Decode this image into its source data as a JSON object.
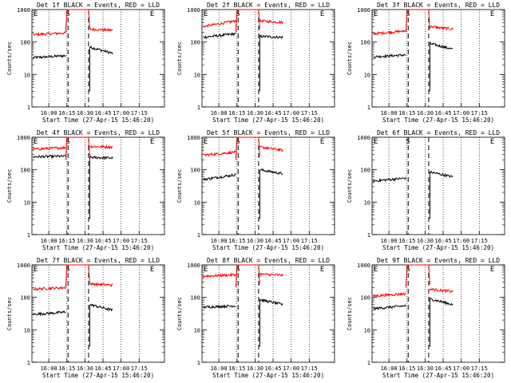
{
  "figure": {
    "shared": {
      "type": "line",
      "yscale": "log",
      "ylim": [
        1,
        1000
      ],
      "ylabel": "Counts/sec",
      "xlabel": "Start Time (27-Apr-15 15:46:20)",
      "xticks": [
        "16:00",
        "16:15",
        "16:30",
        "16:45",
        "17:00",
        "17:15"
      ],
      "yticks": [
        "1",
        "10",
        "100",
        "1000"
      ],
      "series_colors": {
        "events": "#000000",
        "lld": "#ff0000"
      },
      "marker_labels": [
        "E",
        "S",
        "E"
      ],
      "grid": "vertical dotted at x ticks"
    }
  },
  "chart_data": [
    {
      "type": "line",
      "title": "Det 1f BLACK = Events, RED = LLD",
      "xlabel": "Start Time (27-Apr-15 15:46:20)",
      "ylabel": "Counts/sec",
      "yscale": "log",
      "ylim": [
        1,
        1000
      ],
      "x_markers_min": [
        0,
        30,
        47,
        100
      ],
      "marker_labels": [
        "E",
        "S",
        "E"
      ],
      "series": [
        {
          "color": "#000000",
          "segments": [
            {
              "x": [
                1,
                28
              ],
              "y": [
                33,
                38
              ]
            },
            {
              "x": [
                48,
                67
              ],
              "y": [
                70,
                45
              ]
            }
          ]
        },
        {
          "color": "#ff0000",
          "segments": [
            {
              "x": [
                1,
                28
              ],
              "y": [
                170,
                190
              ]
            },
            {
              "x": [
                28,
                48
              ],
              "y": [
                1000,
                1000
              ]
            },
            {
              "x": [
                48,
                67
              ],
              "y": [
                250,
                230
              ]
            }
          ]
        }
      ]
    },
    {
      "type": "line",
      "title": "Det 2f BLACK = Events, RED = LLD",
      "xlabel": "Start Time (27-Apr-15 15:46:20)",
      "ylabel": "Counts/sec",
      "yscale": "log",
      "ylim": [
        1,
        1000
      ],
      "x_markers_min": [
        0,
        30,
        47,
        100
      ],
      "marker_labels": [
        "E",
        "S",
        "E"
      ],
      "series": [
        {
          "color": "#000000",
          "segments": [
            {
              "x": [
                1,
                28
              ],
              "y": [
                140,
                180
              ]
            },
            {
              "x": [
                48,
                67
              ],
              "y": [
                150,
                140
              ]
            }
          ]
        },
        {
          "color": "#ff0000",
          "segments": [
            {
              "x": [
                1,
                28
              ],
              "y": [
                300,
                450
              ]
            },
            {
              "x": [
                28,
                48
              ],
              "y": [
                1000,
                1000
              ]
            },
            {
              "x": [
                48,
                67
              ],
              "y": [
                450,
                400
              ]
            }
          ]
        }
      ]
    },
    {
      "type": "line",
      "title": "Det 3f BLACK = Events, RED = LLD",
      "xlabel": "Start Time (27-Apr-15 15:46:20)",
      "ylabel": "Counts/sec",
      "yscale": "log",
      "ylim": [
        1,
        1000
      ],
      "x_markers_min": [
        0,
        30,
        47,
        100
      ],
      "marker_labels": [
        "E",
        "S",
        "E"
      ],
      "series": [
        {
          "color": "#000000",
          "segments": [
            {
              "x": [
                1,
                28
              ],
              "y": [
                35,
                40
              ]
            },
            {
              "x": [
                48,
                67
              ],
              "y": [
                90,
                60
              ]
            }
          ]
        },
        {
          "color": "#ff0000",
          "segments": [
            {
              "x": [
                1,
                28
              ],
              "y": [
                180,
                220
              ]
            },
            {
              "x": [
                28,
                48
              ],
              "y": [
                1000,
                1000
              ]
            },
            {
              "x": [
                48,
                67
              ],
              "y": [
                300,
                250
              ]
            }
          ]
        }
      ]
    },
    {
      "type": "line",
      "title": "Det 4f BLACK = Events, RED = LLD",
      "xlabel": "Start Time (27-Apr-15 15:46:20)",
      "ylabel": "Counts/sec",
      "yscale": "log",
      "ylim": [
        1,
        1000
      ],
      "x_markers_min": [
        0,
        30,
        47,
        100
      ],
      "marker_labels": [
        "E",
        "S",
        "E"
      ],
      "series": [
        {
          "color": "#000000",
          "segments": [
            {
              "x": [
                1,
                28
              ],
              "y": [
                250,
                260
              ]
            },
            {
              "x": [
                48,
                67
              ],
              "y": [
                240,
                230
              ]
            }
          ]
        },
        {
          "color": "#ff0000",
          "segments": [
            {
              "x": [
                1,
                28
              ],
              "y": [
                430,
                480
              ]
            },
            {
              "x": [
                28,
                48
              ],
              "y": [
                1000,
                1000
              ]
            },
            {
              "x": [
                48,
                67
              ],
              "y": [
                520,
                500
              ]
            }
          ]
        }
      ]
    },
    {
      "type": "line",
      "title": "Det 5f BLACK = Events, RED = LLD",
      "xlabel": "Start Time (27-Apr-15 15:46:20)",
      "ylabel": "Counts/sec",
      "yscale": "log",
      "ylim": [
        1,
        1000
      ],
      "x_markers_min": [
        0,
        30,
        47,
        100
      ],
      "marker_labels": [
        "E",
        "S",
        "E"
      ],
      "series": [
        {
          "color": "#000000",
          "segments": [
            {
              "x": [
                1,
                28
              ],
              "y": [
                50,
                70
              ]
            },
            {
              "x": [
                48,
                67
              ],
              "y": [
                100,
                75
              ]
            }
          ]
        },
        {
          "color": "#ff0000",
          "segments": [
            {
              "x": [
                1,
                28
              ],
              "y": [
                280,
                350
              ]
            },
            {
              "x": [
                28,
                48
              ],
              "y": [
                1000,
                1000
              ]
            },
            {
              "x": [
                48,
                67
              ],
              "y": [
                500,
                400
              ]
            }
          ]
        }
      ]
    },
    {
      "type": "line",
      "title": "Det 6f BLACK = Events, RED = LLD",
      "xlabel": "Start Time (27-Apr-15 15:46:20)",
      "ylabel": "Counts/sec",
      "yscale": "log",
      "ylim": [
        1,
        1000
      ],
      "x_markers_min": [
        0,
        30,
        47,
        100
      ],
      "marker_labels": [
        "E",
        "S",
        "E"
      ],
      "series": [
        {
          "color": "#000000",
          "segments": [
            {
              "x": [
                1,
                28
              ],
              "y": [
                45,
                55
              ]
            },
            {
              "x": [
                48,
                67
              ],
              "y": [
                85,
                60
              ]
            }
          ]
        }
      ]
    },
    {
      "type": "line",
      "title": "Det 7f BLACK = Events, RED = LLD",
      "xlabel": "Start Time (27-Apr-15 15:46:20)",
      "ylabel": "Counts/sec",
      "yscale": "log",
      "ylim": [
        1,
        1000
      ],
      "x_markers_min": [
        0,
        30,
        47,
        100
      ],
      "marker_labels": [
        "E",
        "S",
        "E"
      ],
      "series": [
        {
          "color": "#000000",
          "segments": [
            {
              "x": [
                1,
                28
              ],
              "y": [
                30,
                35
              ]
            },
            {
              "x": [
                48,
                67
              ],
              "y": [
                60,
                40
              ]
            }
          ]
        },
        {
          "color": "#ff0000",
          "segments": [
            {
              "x": [
                1,
                28
              ],
              "y": [
                180,
                200
              ]
            },
            {
              "x": [
                28,
                48
              ],
              "y": [
                1000,
                1000
              ]
            },
            {
              "x": [
                48,
                67
              ],
              "y": [
                260,
                240
              ]
            }
          ]
        }
      ]
    },
    {
      "type": "line",
      "title": "Det 8f BLACK = Events, RED = LLD",
      "xlabel": "Start Time (27-Apr-15 15:46:20)",
      "ylabel": "Counts/sec",
      "yscale": "log",
      "ylim": [
        1,
        1000
      ],
      "x_markers_min": [
        0,
        30,
        47,
        100
      ],
      "marker_labels": [
        "E",
        "S",
        "E"
      ],
      "series": [
        {
          "color": "#000000",
          "segments": [
            {
              "x": [
                1,
                28
              ],
              "y": [
                50,
                55
              ]
            },
            {
              "x": [
                48,
                67
              ],
              "y": [
                85,
                60
              ]
            }
          ]
        },
        {
          "color": "#ff0000",
          "segments": [
            {
              "x": [
                1,
                28
              ],
              "y": [
                450,
                500
              ]
            },
            {
              "x": [
                28,
                48
              ],
              "y": [
                1000,
                1000
              ]
            },
            {
              "x": [
                48,
                67
              ],
              "y": [
                520,
                480
              ]
            }
          ]
        }
      ]
    },
    {
      "type": "line",
      "title": "Det 9f BLACK = Events, RED = LLD",
      "xlabel": "Start Time (27-Apr-15 15:46:20)",
      "ylabel": "Counts/sec",
      "yscale": "log",
      "ylim": [
        1,
        1000
      ],
      "x_markers_min": [
        0,
        30,
        47,
        100
      ],
      "marker_labels": [
        "E",
        "S",
        "E"
      ],
      "series": [
        {
          "color": "#000000",
          "segments": [
            {
              "x": [
                1,
                28
              ],
              "y": [
                45,
                55
              ]
            },
            {
              "x": [
                48,
                67
              ],
              "y": [
                90,
                60
              ]
            }
          ]
        },
        {
          "color": "#ff0000",
          "segments": [
            {
              "x": [
                1,
                28
              ],
              "y": [
                110,
                130
              ]
            },
            {
              "x": [
                28,
                48
              ],
              "y": [
                1000,
                1000
              ]
            },
            {
              "x": [
                48,
                67
              ],
              "y": [
                180,
                150
              ]
            }
          ]
        }
      ]
    }
  ]
}
